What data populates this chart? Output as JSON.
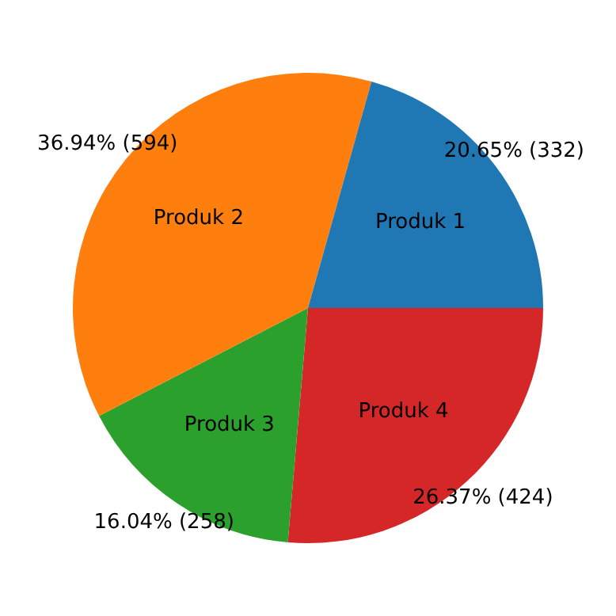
{
  "chart_data": {
    "type": "pie",
    "categories": [
      "Produk 1",
      "Produk 2",
      "Produk 3",
      "Produk 4"
    ],
    "values": [
      332,
      594,
      258,
      424
    ],
    "colors": [
      "#1f77b4",
      "#ff7f0e",
      "#2ca02c",
      "#d62728"
    ],
    "value_labels": [
      "20.65% (332)",
      "36.94% (594)",
      "16.04% (258)",
      "26.37% (424)"
    ],
    "legend": false
  }
}
